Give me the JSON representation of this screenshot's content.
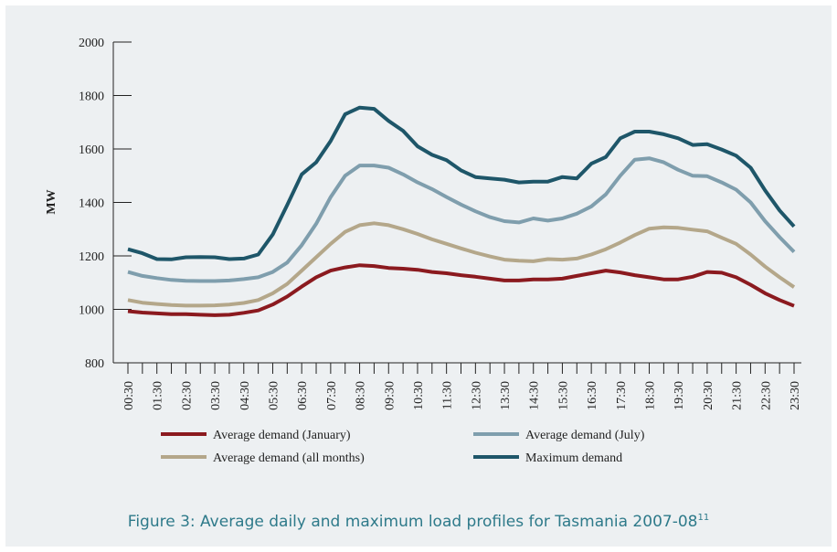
{
  "chart_data": {
    "type": "line",
    "title": "Figure 3: Average daily and maximum load profiles for Tasmania 2007-08",
    "title_note": "11",
    "y_label": "MW",
    "categories": [
      "00:30",
      null,
      "01:30",
      null,
      "02:30",
      null,
      "03:30",
      null,
      "04:30",
      null,
      "05:30",
      null,
      "06:30",
      null,
      "07:30",
      null,
      "08:30",
      null,
      "09:30",
      null,
      "10:30",
      null,
      "11:30",
      null,
      "12:30",
      null,
      "13:30",
      null,
      "14:30",
      null,
      "15:30",
      null,
      "16:30",
      null,
      "17:30",
      null,
      "18:30",
      null,
      "19:30",
      null,
      "20:30",
      null,
      "21:30",
      null,
      "22:30",
      null,
      "23:30"
    ],
    "ylim": [
      800,
      2000
    ],
    "yticks": [
      800,
      1000,
      1200,
      1400,
      1600,
      1800,
      2000
    ],
    "series": [
      {
        "name": "Average demand (January)",
        "color": "#8b1a1f",
        "values": [
          993,
          988,
          985,
          982,
          982,
          980,
          978,
          980,
          987,
          996,
          1018,
          1048,
          1085,
          1120,
          1145,
          1157,
          1165,
          1162,
          1155,
          1152,
          1148,
          1140,
          1135,
          1128,
          1122,
          1115,
          1108,
          1108,
          1112,
          1112,
          1115,
          1125,
          1135,
          1145,
          1138,
          1128,
          1120,
          1112,
          1112,
          1122,
          1140,
          1137,
          1120,
          1092,
          1060,
          1035,
          1013
        ]
      },
      {
        "name": "Average demand (July)",
        "color": "#7f9ead",
        "values": [
          1140,
          1125,
          1117,
          1110,
          1107,
          1106,
          1106,
          1108,
          1113,
          1120,
          1140,
          1175,
          1240,
          1320,
          1420,
          1500,
          1538,
          1538,
          1530,
          1505,
          1475,
          1450,
          1420,
          1392,
          1367,
          1345,
          1330,
          1325,
          1340,
          1332,
          1340,
          1358,
          1385,
          1430,
          1500,
          1560,
          1565,
          1550,
          1522,
          1500,
          1498,
          1475,
          1448,
          1400,
          1330,
          1270,
          1215
        ]
      },
      {
        "name": "Average demand (all months)",
        "color": "#b4a78a",
        "values": [
          1035,
          1025,
          1020,
          1016,
          1014,
          1014,
          1015,
          1018,
          1024,
          1035,
          1060,
          1095,
          1145,
          1195,
          1245,
          1290,
          1315,
          1322,
          1315,
          1300,
          1282,
          1262,
          1245,
          1228,
          1212,
          1198,
          1186,
          1182,
          1180,
          1188,
          1186,
          1190,
          1205,
          1225,
          1250,
          1278,
          1302,
          1307,
          1305,
          1298,
          1292,
          1268,
          1245,
          1205,
          1160,
          1120,
          1083
        ]
      },
      {
        "name": "Maximum demand",
        "color": "#1e5669",
        "values": [
          1225,
          1210,
          1188,
          1187,
          1195,
          1196,
          1195,
          1188,
          1190,
          1205,
          1280,
          1390,
          1505,
          1550,
          1630,
          1730,
          1755,
          1750,
          1705,
          1668,
          1610,
          1578,
          1558,
          1520,
          1495,
          1490,
          1485,
          1475,
          1478,
          1478,
          1495,
          1490,
          1545,
          1570,
          1640,
          1665,
          1665,
          1655,
          1640,
          1615,
          1618,
          1598,
          1575,
          1530,
          1445,
          1370,
          1310
        ]
      }
    ]
  }
}
